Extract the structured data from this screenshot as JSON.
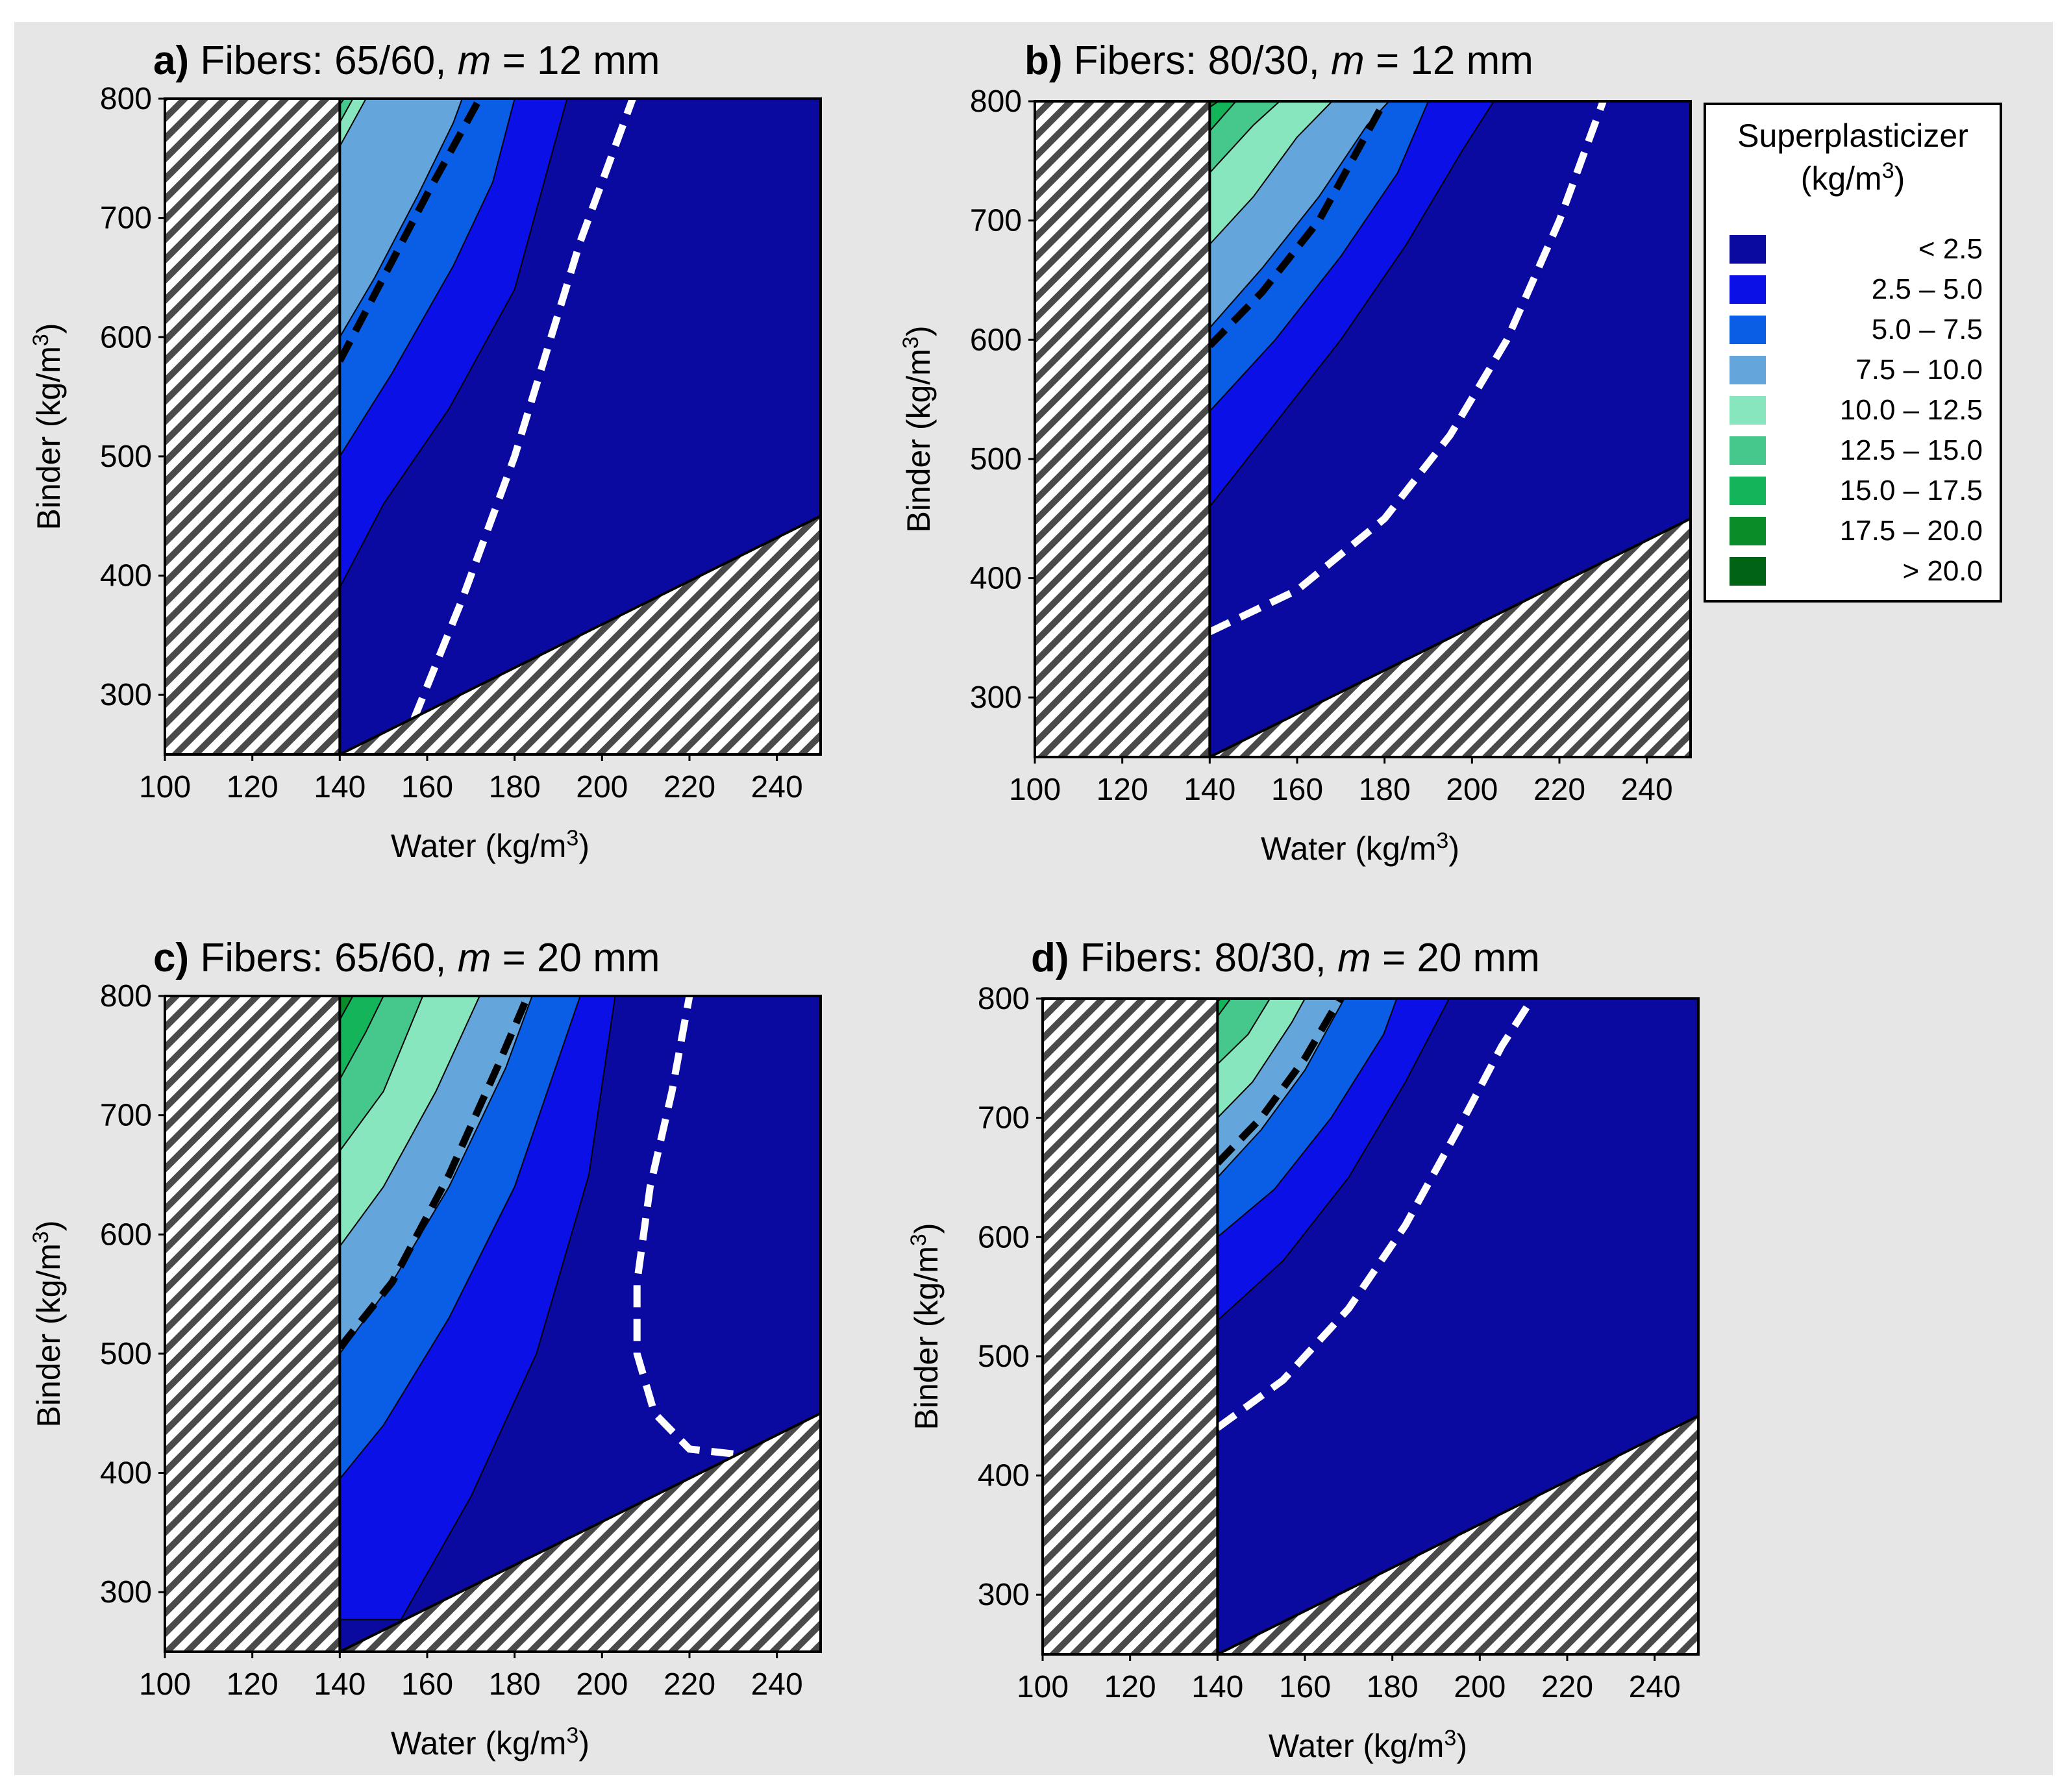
{
  "chart_data": {
    "type": "heatmap",
    "subtype": "contour",
    "variable": "Superplasticizer",
    "colors": {
      "hatch_stripe": "#4a4a4a",
      "hatch_bg": "#ffffff",
      "feasible_line_color": "#ffffff",
      "limit_line_color": "#000000",
      "figure_bg": "#e6e6e6"
    },
    "legend": {
      "title_line1": "Superplasticizer",
      "title_line2_base": "(kg/m",
      "title_line2_sup": "3",
      "title_line2_end": ")",
      "levels": [
        {
          "label": "< 2.5",
          "color": "#0a0aa0"
        },
        {
          "label": "2.5 –  5.0",
          "color": "#0a10e6"
        },
        {
          "label": "5.0 –  7.5",
          "color": "#0a5ee6"
        },
        {
          "label": "7.5 – 10.0",
          "color": "#64a6dc"
        },
        {
          "label": "10.0 – 12.5",
          "color": "#87e6be"
        },
        {
          "label": "12.5 – 15.0",
          "color": "#46c88c"
        },
        {
          "label": "15.0 – 17.5",
          "color": "#14b45a"
        },
        {
          "label": "17.5 – 20.0",
          "color": "#0a8c28"
        },
        {
          "label": "> 20.0",
          "color": "#006414"
        }
      ]
    },
    "axes": {
      "xlabel_base": "Water (kg/m",
      "xlabel_sup": "3",
      "xlabel_end": ")",
      "ylabel_base": "Binder  (kg/m",
      "ylabel_sup": "3",
      "ylabel_end": ")",
      "xlim": [
        100,
        250
      ],
      "ylim": [
        250,
        800
      ],
      "xticks": [
        100,
        120,
        140,
        160,
        180,
        200,
        220,
        240
      ],
      "yticks": [
        300,
        400,
        500,
        600,
        700,
        800
      ],
      "excluded_region_left": {
        "x_max": 140
      },
      "excluded_region_bottom": {
        "line": [
          [
            140,
            250
          ],
          [
            250,
            450
          ]
        ]
      }
    },
    "panels": [
      {
        "id": "a",
        "title_letter": "a)",
        "title_fibers": " Fibers: 65/60, ",
        "title_m": "m",
        "title_rest": " = 12 mm",
        "band_boundaries": [
          [
            [
              140,
              390
            ],
            [
              150,
              460
            ],
            [
              165,
              540
            ],
            [
              180,
              640
            ],
            [
              192,
              800
            ]
          ],
          [
            [
              140,
              500
            ],
            [
              152,
              570
            ],
            [
              166,
              660
            ],
            [
              175,
              730
            ],
            [
              180,
              800
            ]
          ],
          [
            [
              140,
              600
            ],
            [
              148,
              650
            ],
            [
              158,
              720
            ],
            [
              166,
              780
            ],
            [
              168,
              800
            ]
          ],
          [
            [
              140,
              760
            ],
            [
              146,
              800
            ]
          ],
          [
            [
              140,
              780
            ],
            [
              143,
              800
            ]
          ],
          [
            [
              140,
              795
            ],
            [
              141,
              800
            ]
          ],
          [
            [
              140,
              799
            ],
            [
              140,
              800
            ]
          ]
        ],
        "feasible_line": [
          [
            157,
            280
          ],
          [
            168,
            380
          ],
          [
            180,
            500
          ],
          [
            195,
            680
          ],
          [
            207,
            800
          ]
        ],
        "limit_line": [
          [
            140,
            580
          ],
          [
            150,
            650
          ],
          [
            160,
            720
          ],
          [
            172,
            800
          ]
        ]
      },
      {
        "id": "b",
        "title_letter": "b)",
        "title_fibers": " Fibers: 80/30, ",
        "title_m": "m",
        "title_rest": " = 12 mm",
        "band_boundaries": [
          [
            [
              140,
              460
            ],
            [
              155,
              530
            ],
            [
              170,
              600
            ],
            [
              185,
              680
            ],
            [
              198,
              760
            ],
            [
              205,
              800
            ]
          ],
          [
            [
              140,
              540
            ],
            [
              155,
              600
            ],
            [
              170,
              670
            ],
            [
              183,
              740
            ],
            [
              190,
              800
            ]
          ],
          [
            [
              140,
              610
            ],
            [
              152,
              660
            ],
            [
              165,
              720
            ],
            [
              176,
              780
            ],
            [
              181,
              800
            ]
          ],
          [
            [
              140,
              680
            ],
            [
              150,
              720
            ],
            [
              160,
              770
            ],
            [
              168,
              800
            ]
          ],
          [
            [
              140,
              740
            ],
            [
              150,
              780
            ],
            [
              156,
              800
            ]
          ],
          [
            [
              140,
              775
            ],
            [
              146,
              800
            ]
          ],
          [
            [
              140,
              795
            ],
            [
              142,
              800
            ]
          ]
        ],
        "feasible_line": [
          [
            140,
            355
          ],
          [
            160,
            390
          ],
          [
            180,
            450
          ],
          [
            195,
            520
          ],
          [
            208,
            600
          ],
          [
            220,
            700
          ],
          [
            230,
            800
          ]
        ],
        "limit_line": [
          [
            140,
            595
          ],
          [
            152,
            640
          ],
          [
            165,
            700
          ],
          [
            180,
            800
          ]
        ]
      },
      {
        "id": "c",
        "title_letter": "c)",
        "title_fibers": " Fibers: 65/60, ",
        "title_m": "m",
        "title_rest": " = 20 mm",
        "band_boundaries": [
          [
            [
              154,
              277
            ],
            [
              170,
              380
            ],
            [
              185,
              500
            ],
            [
              197,
              650
            ],
            [
              203,
              800
            ]
          ],
          [
            [
              140,
              395
            ],
            [
              150,
              440
            ],
            [
              165,
              530
            ],
            [
              180,
              640
            ],
            [
              195,
              800
            ]
          ],
          [
            [
              140,
              500
            ],
            [
              152,
              560
            ],
            [
              165,
              640
            ],
            [
              178,
              740
            ],
            [
              184,
              800
            ]
          ],
          [
            [
              140,
              590
            ],
            [
              150,
              640
            ],
            [
              162,
              720
            ],
            [
              172,
              800
            ]
          ],
          [
            [
              140,
              670
            ],
            [
              150,
              720
            ],
            [
              159,
              800
            ]
          ],
          [
            [
              140,
              730
            ],
            [
              146,
              770
            ],
            [
              150,
              800
            ]
          ],
          [
            [
              140,
              780
            ],
            [
              143,
              800
            ]
          ]
        ],
        "feasible_line": [
          [
            230,
            416
          ],
          [
            220,
            420
          ],
          [
            212,
            450
          ],
          [
            208,
            500
          ],
          [
            208,
            560
          ],
          [
            211,
            640
          ],
          [
            216,
            720
          ],
          [
            220,
            800
          ]
        ],
        "limit_line": [
          [
            140,
            505
          ],
          [
            152,
            560
          ],
          [
            165,
            650
          ],
          [
            176,
            740
          ],
          [
            183,
            800
          ]
        ]
      },
      {
        "id": "d",
        "title_letter": "d)",
        "title_fibers": " Fibers: 80/30, ",
        "title_m": "m",
        "title_rest": " = 20 mm",
        "band_boundaries": [
          [
            [
              140,
              530
            ],
            [
              155,
              580
            ],
            [
              170,
              650
            ],
            [
              183,
              730
            ],
            [
              193,
              800
            ]
          ],
          [
            [
              140,
              600
            ],
            [
              153,
              640
            ],
            [
              166,
              700
            ],
            [
              178,
              770
            ],
            [
              181,
              800
            ]
          ],
          [
            [
              140,
              650
            ],
            [
              150,
              690
            ],
            [
              160,
              740
            ],
            [
              169,
              800
            ]
          ],
          [
            [
              140,
              700
            ],
            [
              148,
              730
            ],
            [
              157,
              780
            ],
            [
              160,
              800
            ]
          ],
          [
            [
              140,
              745
            ],
            [
              147,
              770
            ],
            [
              152,
              800
            ]
          ],
          [
            [
              140,
              785
            ],
            [
              143,
              800
            ]
          ],
          [
            [
              140,
              798
            ],
            [
              141,
              800
            ]
          ]
        ],
        "feasible_line": [
          [
            140,
            440
          ],
          [
            155,
            480
          ],
          [
            170,
            540
          ],
          [
            183,
            610
          ],
          [
            195,
            690
          ],
          [
            205,
            760
          ],
          [
            212,
            800
          ]
        ],
        "limit_line": [
          [
            140,
            662
          ],
          [
            150,
            700
          ],
          [
            160,
            750
          ],
          [
            168,
            800
          ]
        ]
      }
    ]
  }
}
